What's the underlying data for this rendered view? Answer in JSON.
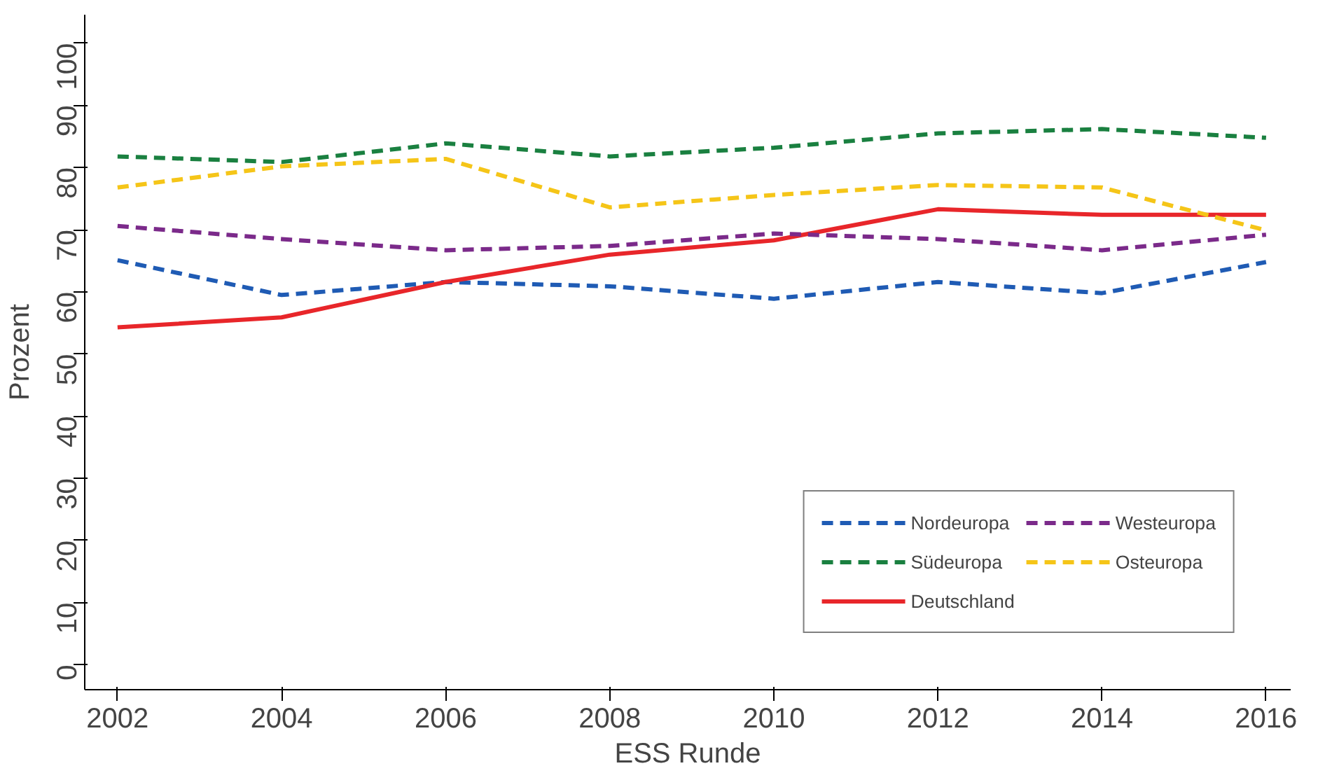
{
  "chart_data": {
    "type": "line",
    "xlabel": "ESS Runde",
    "ylabel": "Prozent",
    "x": [
      2002,
      2004,
      2006,
      2008,
      2010,
      2012,
      2014,
      2016
    ],
    "xlim": [
      2001.6,
      2016.3
    ],
    "xticks": [
      2002,
      2004,
      2006,
      2008,
      2010,
      2012,
      2014,
      2016
    ],
    "ylim": [
      -4,
      104.6
    ],
    "yticks": [
      0,
      10,
      20,
      30,
      40,
      50,
      60,
      70,
      80,
      90,
      100
    ],
    "grid": false,
    "legend": "bottom right",
    "marker": "none",
    "series": [
      {
        "name": "Nordeuropa",
        "color": "#1f5bb4",
        "line_style": "dashed",
        "values": [
          65.1,
          59.5,
          61.6,
          60.9,
          58.9,
          61.6,
          59.8,
          64.8
        ]
      },
      {
        "name": "Südeuropa",
        "color": "#1a8040",
        "line_style": "dashed",
        "values": [
          81.8,
          80.9,
          83.9,
          81.8,
          83.2,
          85.5,
          86.2,
          84.8
        ]
      },
      {
        "name": "Deutschland",
        "color": "#e8262a",
        "line_style": "solid",
        "values": [
          54.3,
          55.9,
          61.6,
          66.0,
          68.3,
          73.3,
          72.4,
          72.4
        ]
      },
      {
        "name": "Westeuropa",
        "color": "#7b2a8a",
        "line_style": "dashed",
        "values": [
          70.6,
          68.5,
          66.7,
          67.4,
          69.4,
          68.5,
          66.7,
          69.2
        ]
      },
      {
        "name": "Osteuropa",
        "color": "#f5c518",
        "line_style": "dashed",
        "values": [
          76.8,
          80.2,
          81.4,
          73.6,
          75.6,
          77.2,
          76.8,
          69.9
        ]
      }
    ]
  }
}
